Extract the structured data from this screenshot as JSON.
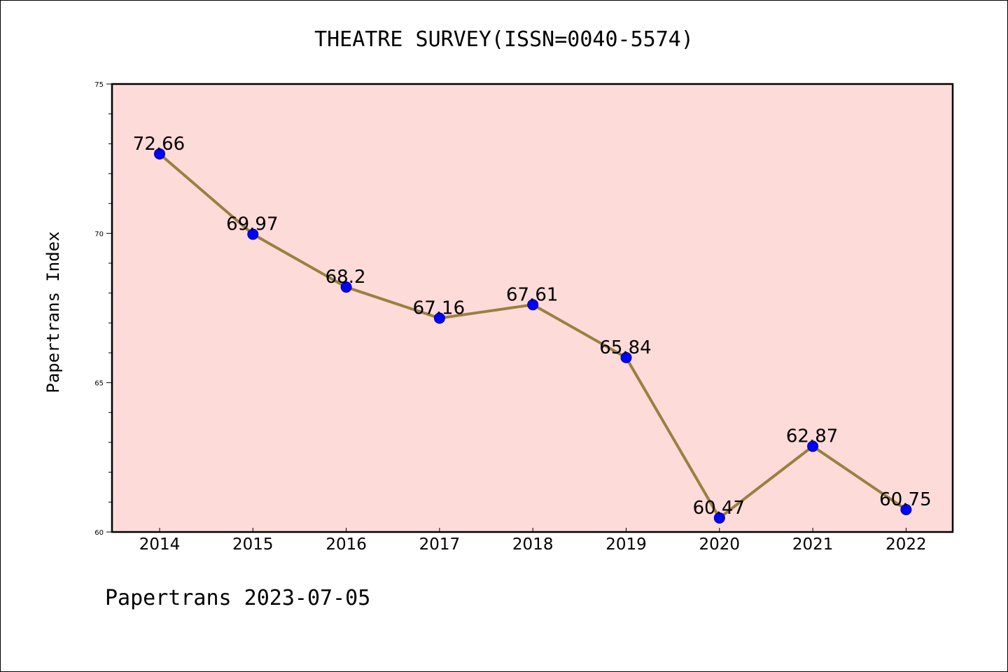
{
  "chart_data": {
    "type": "line",
    "title": "THEATRE SURVEY(ISSN=0040-5574)",
    "ylabel": "Papertrans Index",
    "xlabel": "",
    "footer": "Papertrans 2023-07-05",
    "categories": [
      "2014",
      "2015",
      "2016",
      "2017",
      "2018",
      "2019",
      "2020",
      "2021",
      "2022"
    ],
    "series": [
      {
        "values": [
          72.66,
          69.97,
          68.2,
          67.16,
          67.61,
          65.84,
          60.47,
          62.87,
          60.75
        ]
      }
    ],
    "data_labels": [
      "72.66",
      "69.97",
      "68.2",
      "67.16",
      "67.61",
      "65.84",
      "60.47",
      "62.87",
      "60.75"
    ],
    "ylim": [
      60,
      75
    ],
    "yticks": [
      60,
      65,
      70,
      75
    ],
    "grid": false,
    "colors": {
      "plot_background": "#fddbd8",
      "line": "#9a8040",
      "marker": "#0000ff",
      "marker_edge": "#00008b"
    }
  }
}
